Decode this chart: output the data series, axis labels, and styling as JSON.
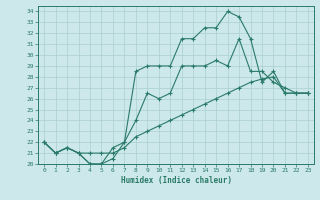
{
  "xlabel": "Humidex (Indice chaleur)",
  "xlim": [
    -0.5,
    23.5
  ],
  "ylim": [
    20,
    34.5
  ],
  "xticks": [
    0,
    1,
    2,
    3,
    4,
    5,
    6,
    7,
    8,
    9,
    10,
    11,
    12,
    13,
    14,
    15,
    16,
    17,
    18,
    19,
    20,
    21,
    22,
    23
  ],
  "yticks": [
    20,
    21,
    22,
    23,
    24,
    25,
    26,
    27,
    28,
    29,
    30,
    31,
    32,
    33,
    34
  ],
  "line_color": "#2a7a6a",
  "bg_color": "#cce8ea",
  "grid_color": "#aacfcf",
  "line1_x": [
    0,
    1,
    2,
    3,
    4,
    5,
    6,
    7,
    8,
    9,
    10,
    11,
    12,
    13,
    14,
    15,
    16,
    17,
    18,
    19,
    20,
    21,
    22,
    23
  ],
  "line1_y": [
    22.0,
    21.0,
    21.5,
    21.0,
    20.0,
    20.0,
    20.5,
    22.0,
    28.5,
    29.0,
    29.0,
    29.0,
    31.5,
    31.5,
    32.5,
    32.5,
    34.0,
    33.5,
    31.5,
    27.5,
    28.5,
    26.5,
    26.5,
    26.5
  ],
  "line2_x": [
    0,
    1,
    2,
    3,
    4,
    5,
    6,
    7,
    8,
    9,
    10,
    11,
    12,
    13,
    14,
    15,
    16,
    17,
    18,
    19,
    20,
    21,
    22,
    23
  ],
  "line2_y": [
    22.0,
    21.0,
    21.5,
    21.0,
    20.0,
    20.0,
    21.5,
    22.0,
    24.0,
    26.5,
    26.0,
    26.5,
    29.0,
    29.0,
    29.0,
    29.5,
    29.0,
    31.5,
    28.5,
    28.5,
    27.5,
    27.0,
    26.5,
    26.5
  ],
  "line3_x": [
    0,
    1,
    2,
    3,
    4,
    5,
    6,
    7,
    8,
    9,
    10,
    11,
    12,
    13,
    14,
    15,
    16,
    17,
    18,
    19,
    20,
    21,
    22,
    23
  ],
  "line3_y": [
    22.0,
    21.0,
    21.5,
    21.0,
    21.0,
    21.0,
    21.0,
    21.5,
    22.5,
    23.0,
    23.5,
    24.0,
    24.5,
    25.0,
    25.5,
    26.0,
    26.5,
    27.0,
    27.5,
    27.8,
    28.0,
    26.5,
    26.5,
    26.5
  ],
  "linewidth": 0.8,
  "markersize": 3
}
